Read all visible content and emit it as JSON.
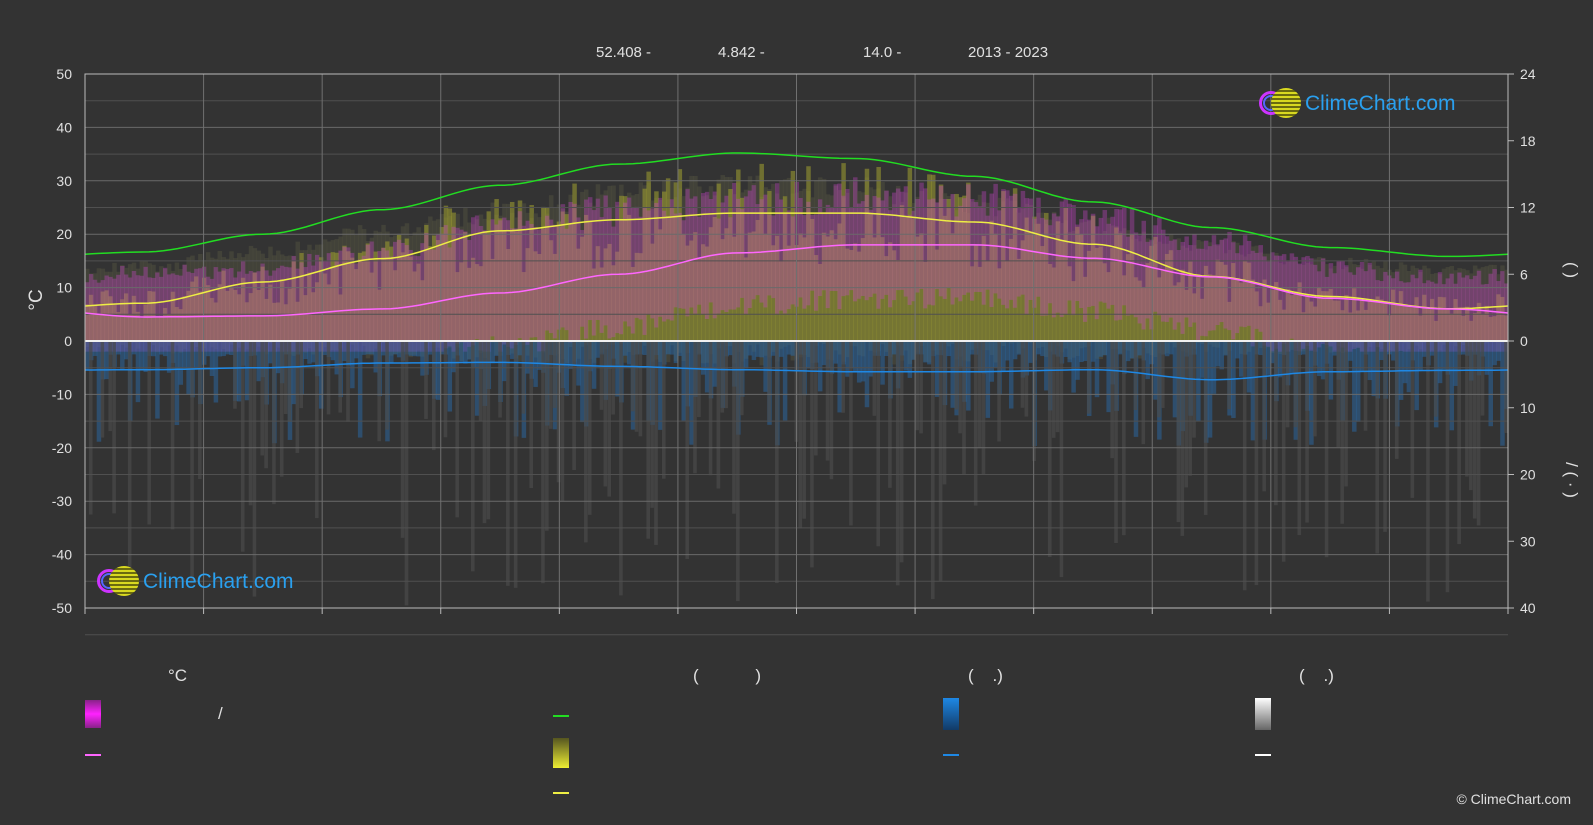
{
  "header": {
    "lat": "52.408 -",
    "lon": "4.842 -",
    "elev": "14.0 -",
    "years": "2013 - 2023"
  },
  "axes": {
    "left_label": "°C",
    "right_upper_label": "(  )",
    "right_lower_label": "/  (  ·  )"
  },
  "legend": {
    "col1_title": "°C",
    "col1_item1": "/",
    "col2_title": "(            )",
    "col3_title": "(    .)",
    "col4_title": "(    .)"
  },
  "logo_text": "ClimeChart.com",
  "copyright": "© ClimeChart.com",
  "colors": {
    "daylight": "#22dd22",
    "sunshine": "#eeee44",
    "temp_mean": "#ff66ff",
    "precip": "#1e88e5",
    "snow": "#ffffff",
    "temp_band": "#dd33dd"
  },
  "chart_data": {
    "type": "line",
    "x_months": 12,
    "left_axis": {
      "label": "°C",
      "min": -50,
      "max": 50,
      "ticks": [
        50,
        40,
        30,
        20,
        10,
        0,
        -10,
        -20,
        -30,
        -40,
        -50
      ]
    },
    "right_axis_upper": {
      "min": 0,
      "max": 24,
      "ticks": [
        24,
        18,
        12,
        6,
        0
      ]
    },
    "right_axis_lower": {
      "min": 0,
      "max": 40,
      "ticks": [
        0,
        10,
        20,
        30,
        40
      ]
    },
    "series": [
      {
        "key": "daylight",
        "values": [
          8.0,
          9.6,
          11.8,
          14.0,
          15.9,
          16.9,
          16.4,
          14.8,
          12.5,
          10.2,
          8.4,
          7.6
        ],
        "axis": "right_upper"
      },
      {
        "key": "sunshine",
        "values": [
          3.4,
          5.3,
          7.4,
          9.9,
          10.9,
          11.5,
          11.5,
          10.7,
          8.7,
          5.8,
          4.0,
          2.9
        ],
        "axis": "right_upper"
      },
      {
        "key": "temp_mean",
        "values": [
          4.5,
          4.7,
          6.0,
          9.0,
          12.5,
          16.5,
          18.0,
          18.0,
          15.5,
          12.0,
          8.0,
          6.0
        ],
        "axis": "left"
      },
      {
        "key": "precip",
        "values": [
          4.3,
          4.0,
          3.3,
          3.2,
          3.8,
          4.3,
          4.6,
          4.6,
          4.3,
          5.8,
          4.6,
          4.4
        ],
        "axis": "right_lower"
      }
    ],
    "temp_band_max": [
      13,
      14,
      17,
      22,
      25,
      27,
      28,
      27,
      24,
      19,
      14,
      12
    ]
  }
}
